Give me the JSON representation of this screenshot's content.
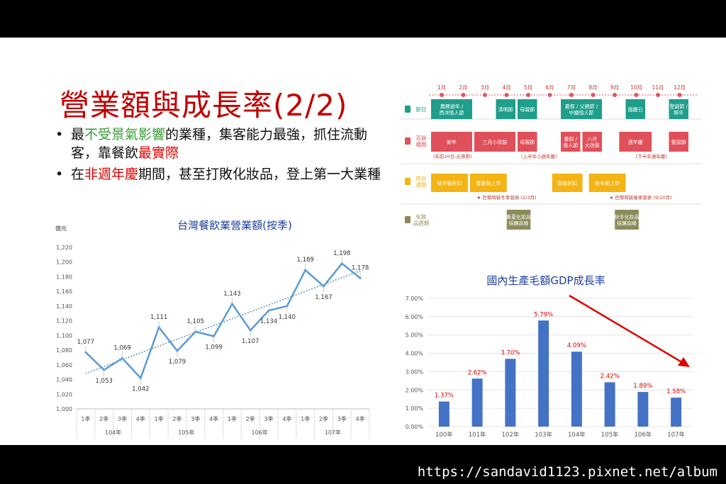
{
  "slide": {
    "title": "營業額與成長率(2/2)",
    "bullet1": {
      "a": "最",
      "b": "不受景氣影響",
      "c": "的業種，集客能力最強，抓住流動客，靠餐飲",
      "d": "最實際"
    },
    "bullet2": {
      "a": "在",
      "b": "非週年慶",
      "c": "期間，甚至打敗化妝品，登上第一大業種"
    }
  },
  "watermark": "https://sandavid1123.pixnet.net/album",
  "calendar": {
    "months": [
      "1月",
      "2月",
      "3月",
      "4月",
      "5月",
      "6月",
      "7月",
      "8月",
      "9月",
      "10月",
      "11月",
      "12月"
    ],
    "row_labels": [
      "節日",
      "百貨檔期",
      "時尚週期",
      "化妝品週期"
    ],
    "holidays": [
      {
        "text": "農曆過年 /\n西洋情人節",
        "m": 1,
        "span": 2
      },
      {
        "text": "清明節",
        "m": 4,
        "span": 1
      },
      {
        "text": "母親節",
        "m": 5,
        "span": 1
      },
      {
        "text": "暑假 / 父親節 /\n中國情人節",
        "m": 7,
        "span": 2
      },
      {
        "text": "國慶日",
        "m": 10,
        "span": 1
      },
      {
        "text": "聖誕節 /\n跨年",
        "m": 12,
        "span": 1
      }
    ],
    "dept": [
      {
        "text": "新年",
        "m": 1,
        "span": 2
      },
      {
        "text": "三月小改裝",
        "m": 3,
        "span": 2
      },
      {
        "text": "母親節",
        "m": 5,
        "span": 1
      },
      {
        "text": "暑假 /\n情人節",
        "m": 7,
        "span": 1
      },
      {
        "text": "八月\n大改裝",
        "m": 8,
        "span": 1
      },
      {
        "text": "週年慶",
        "m": 9.7,
        "span": 1.6
      },
      {
        "text": "聖誕節",
        "m": 12,
        "span": 1
      }
    ],
    "dept_notes": [
      "(年前20日-元宵節)",
      "(上半年小週年慶)",
      "(下半年週年慶)"
    ],
    "fashion": [
      {
        "text": "秋冬裝折扣",
        "m": 1,
        "span": 1.8
      },
      {
        "text": "春夏裝上市",
        "m": 2.8,
        "span": 1.8
      },
      {
        "text": "春裝折扣",
        "m": 6.6,
        "span": 1.5
      },
      {
        "text": "秋冬裝上市",
        "m": 8.3,
        "span": 1.8
      }
    ],
    "fashion_notes": [
      "巴黎時裝冬季發表 (2/3月)",
      "巴黎時裝春季發表 (9/10月)"
    ],
    "cosmetic": [
      {
        "text": "春夏化妝品\n採購高峰",
        "m": 4.5,
        "span": 1.2
      },
      {
        "text": "秋冬化妝品\n採購高峰",
        "m": 9.5,
        "span": 1.2
      }
    ],
    "colors": {
      "holiday": "#1f9e8a",
      "dept": "#e0505a",
      "fashion": "#f3b414",
      "cosmetic": "#8b8a5a"
    }
  },
  "chart_data": [
    {
      "type": "line",
      "title": "台灣餐飲業營業額(按季)",
      "unit_label": "億元",
      "categories": [
        "1季",
        "2季",
        "3季",
        "4季",
        "1季",
        "2季",
        "3季",
        "4季",
        "1季",
        "2季",
        "3季",
        "4季",
        "1季",
        "2季",
        "3季",
        "4季"
      ],
      "groups": [
        "104年",
        "105年",
        "106年",
        "107年"
      ],
      "values": [
        1077,
        1053,
        1069,
        1042,
        1111,
        1079,
        1105,
        1099,
        1143,
        1107,
        1134,
        1140,
        1189,
        1167,
        1198,
        1178
      ],
      "value_labels": [
        "1,077",
        "1,053",
        "1,069",
        "1,042",
        "1,111",
        "1,079",
        "1,105",
        "1,099",
        "1,143",
        "1,107",
        "1,134",
        "1,140",
        "1,189",
        "1,167",
        "1,198",
        "1,178"
      ],
      "yticks": [
        "1,000",
        "1,020",
        "1,040",
        "1,060",
        "1,080",
        "1,100",
        "1,120",
        "1,140",
        "1,160",
        "1,180",
        "1,200",
        "1,220"
      ],
      "ylim": [
        1000,
        1220
      ],
      "trendline": true,
      "color": "#5b9bd5"
    },
    {
      "type": "bar",
      "title": "國內生產毛額GDP成長率",
      "categories": [
        "100年",
        "101年",
        "102年",
        "103年",
        "104年",
        "105年",
        "106年",
        "107年"
      ],
      "values": [
        1.37,
        2.62,
        3.7,
        5.79,
        4.09,
        2.42,
        1.89,
        1.58
      ],
      "value_labels": [
        "1.37%",
        "2.62%",
        "3.70%",
        "5.79%",
        "4.09%",
        "2.42%",
        "1.89%",
        "1.58%"
      ],
      "yticks": [
        "0.00%",
        "1.00%",
        "2.00%",
        "3.00%",
        "4.00%",
        "5.00%",
        "6.00%",
        "7.00%"
      ],
      "ylim": [
        0,
        7
      ],
      "bar_color": "#4472c4",
      "label_color": "#e00000",
      "arrow_color": "#e00000"
    }
  ]
}
